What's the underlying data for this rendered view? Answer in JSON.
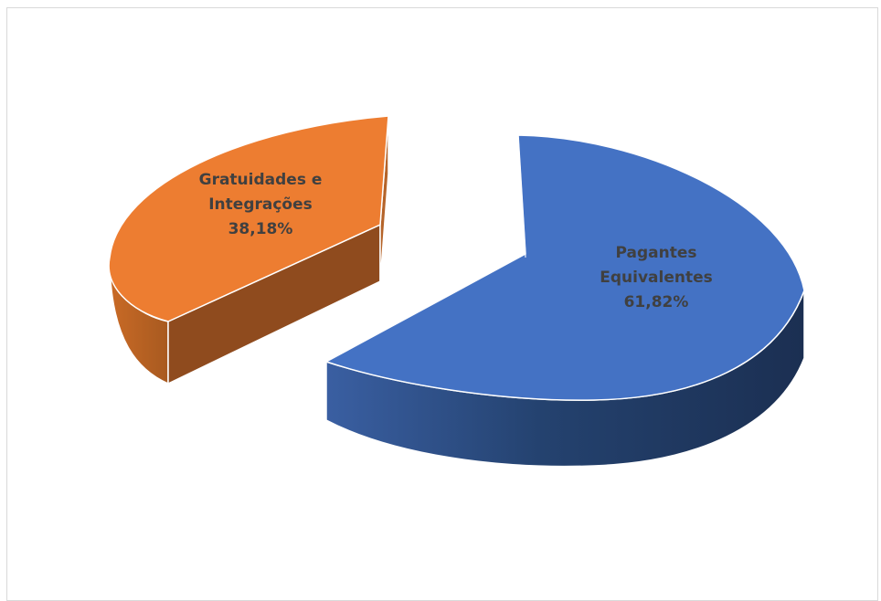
{
  "chart_data": {
    "type": "pie",
    "title": "",
    "series": [
      {
        "categories": [
          "Pagantes Equivalentes",
          "Gratuidades e Integrações"
        ],
        "values": [
          61.82,
          38.18
        ],
        "labels": [
          [
            "Pagantes",
            "Equivalentes",
            "61,82%"
          ],
          [
            "Gratuidades e",
            "Integrações",
            "38,18%"
          ]
        ]
      }
    ],
    "colors": {
      "pagantes_top": "#4472c4",
      "pagantes_side": "#1f3866",
      "gratuidades_top": "#ed7d31",
      "gratuidades_side": "#8f4b1e"
    },
    "legend": "none",
    "style": "3d-exploded"
  }
}
